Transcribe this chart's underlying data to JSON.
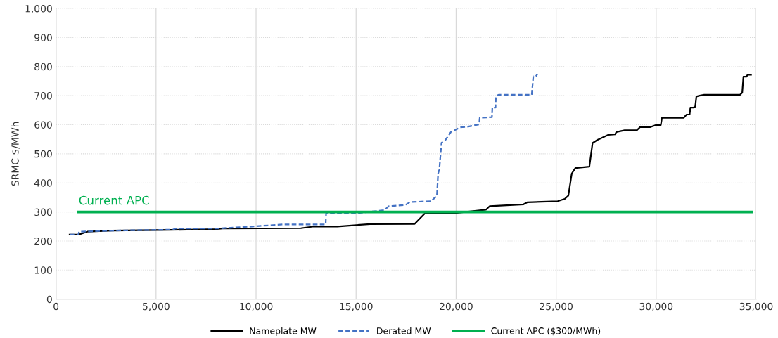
{
  "chart_data": {
    "type": "line",
    "ylabel": "SRMC $/MWh",
    "xlim": [
      0,
      35000
    ],
    "ylim": [
      0,
      1000
    ],
    "xticks": [
      0,
      {
        "value": 5000,
        "label": "5,000"
      },
      {
        "value": 10000,
        "label": "10,000"
      },
      {
        "value": 15000,
        "label": "15,000"
      },
      {
        "value": 20000,
        "label": "20,000"
      },
      {
        "value": 25000,
        "label": "25,000"
      },
      {
        "value": 30000,
        "label": "30,000"
      },
      {
        "value": 35000,
        "label": "35,000"
      }
    ],
    "yticks": [
      0,
      100,
      200,
      300,
      400,
      500,
      600,
      700,
      800,
      900,
      {
        "value": 1000,
        "label": "1,000"
      }
    ],
    "grid": true,
    "legend": "bottom",
    "series": [
      {
        "name": "Nameplate MW",
        "color": "#000000",
        "line_style": "solid",
        "x": [
          680,
          1130,
          1560,
          2790,
          5730,
          8080,
          8310,
          12240,
          12890,
          14060,
          14650,
          15700,
          17930,
          18450,
          20040,
          21500,
          21680,
          23370,
          23550,
          25080,
          25430,
          25610,
          25780,
          25960,
          26660,
          26820,
          27070,
          27600,
          27950,
          28010,
          28420,
          29030,
          29200,
          29710,
          30000,
          30230,
          30290,
          31380,
          31520,
          31670,
          31710,
          31870,
          31950,
          32010,
          32170,
          32400,
          34190,
          34300,
          34360,
          34510,
          34570,
          34740
        ],
        "values": [
          222,
          222,
          232,
          236,
          238,
          241,
          243,
          244,
          250,
          250,
          253,
          258,
          259,
          296,
          297,
          308,
          320,
          326,
          333,
          337,
          345,
          356,
          432,
          451,
          456,
          537,
          548,
          565,
          567,
          575,
          581,
          581,
          592,
          592,
          599,
          599,
          624,
          624,
          635,
          635,
          659,
          659,
          662,
          697,
          700,
          703,
          703,
          710,
          765,
          765,
          772,
          772
        ]
      },
      {
        "name": "Derated MW",
        "color": "#4472c4",
        "line_style": "dashed",
        "x": [
          680,
          1130,
          1150,
          2910,
          5850,
          5960,
          8080,
          9370,
          11360,
          13480,
          13500,
          15060,
          16400,
          16640,
          17460,
          17700,
          18750,
          19040,
          19100,
          19160,
          19270,
          19450,
          19740,
          20210,
          20560,
          21150,
          21180,
          21790,
          21810,
          21970,
          21990,
          22140,
          23780,
          23860,
          23990,
          24070
        ],
        "values": [
          222,
          222,
          232,
          236,
          239,
          243,
          243,
          248,
          257,
          257,
          296,
          296,
          306,
          320,
          324,
          334,
          337,
          356,
          432,
          446,
          538,
          546,
          575,
          591,
          593,
          601,
          624,
          626,
          659,
          659,
          699,
          703,
          703,
          767,
          767,
          775
        ]
      },
      {
        "name": "Current APC ($300/MWh)",
        "color": "#00b050",
        "line_style": "solid",
        "x": [
          1130,
          34770
        ],
        "values": [
          300,
          300
        ]
      }
    ],
    "annotations": [
      {
        "text": "Current APC",
        "x": 1130,
        "y": 300
      }
    ]
  }
}
